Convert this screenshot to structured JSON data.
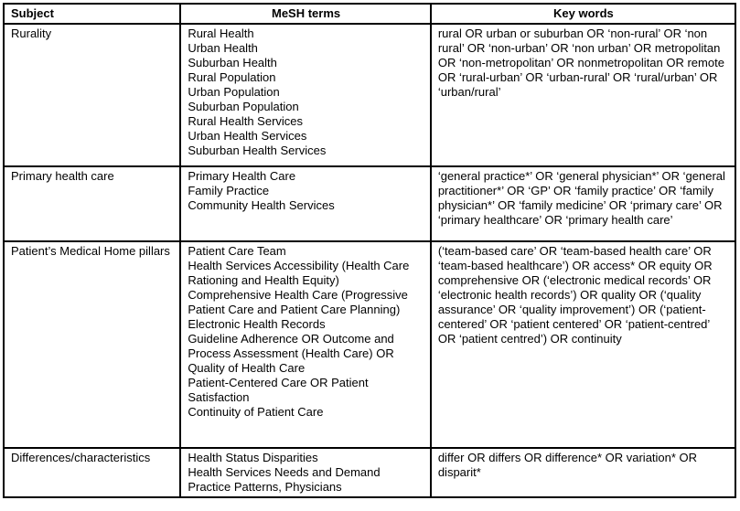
{
  "table": {
    "columns": [
      "Subject",
      "MeSH terms",
      "Key words"
    ],
    "rows": [
      {
        "subject": "Rurality",
        "mesh_terms": [
          "Rural Health",
          "Urban Health",
          "Suburban Health",
          "Rural Population",
          "Urban Population",
          "Suburban Population",
          "Rural Health Services",
          "Urban Health Services",
          "Suburban Health Services"
        ],
        "key_words": "rural OR urban or suburban OR ‘non-rural’ OR ‘non rural’ OR ‘non-urban’ OR ‘non urban’ OR metropolitan OR ‘non-metropolitan’ OR nonmetropolitan OR remote OR ‘rural-urban’ OR ‘urban-rural’ OR ‘rural/urban’ OR ‘urban/rural’"
      },
      {
        "subject": "Primary health care",
        "mesh_terms": [
          "Primary Health Care",
          "Family Practice",
          "Community Health Services"
        ],
        "key_words": "‘general practice*’ OR ‘general physician*’ OR ‘general practitioner*’ OR ‘GP’ OR ‘family practice’ OR ‘family physician*’ OR ‘family medicine’ OR ‘primary care’ OR ‘primary healthcare’ OR ‘primary health care’"
      },
      {
        "subject": "Patient’s Medical Home pillars",
        "mesh_terms": [
          "Patient Care Team",
          "Health Services Accessibility (Health Care Rationing and Health Equity)",
          "Comprehensive Health Care (Progressive Patient Care and Patient Care Planning)",
          "Electronic Health Records",
          "Guideline Adherence OR Outcome and Process Assessment (Health Care) OR Quality of Health Care",
          "Patient-Centered Care OR Patient Satisfaction",
          "Continuity of Patient Care"
        ],
        "key_words": "(‘team-based care’ OR ‘team-based health care’ OR ‘team-based healthcare’) OR access* OR equity OR comprehensive OR (‘electronic medical records’ OR ‘electronic health records’) OR quality OR (‘quality assurance’ OR ‘quality improvement’) OR (‘patient-centered’ OR ‘patient centered’ OR ‘patient-centred’ OR ‘patient centred’) OR continuity"
      },
      {
        "subject": "Differences/characteristics",
        "mesh_terms": [
          "Health Status Disparities",
          "Health Services Needs and Demand",
          "Practice Patterns, Physicians"
        ],
        "key_words": "differ OR differs OR difference* OR variation* OR disparit*"
      }
    ]
  }
}
